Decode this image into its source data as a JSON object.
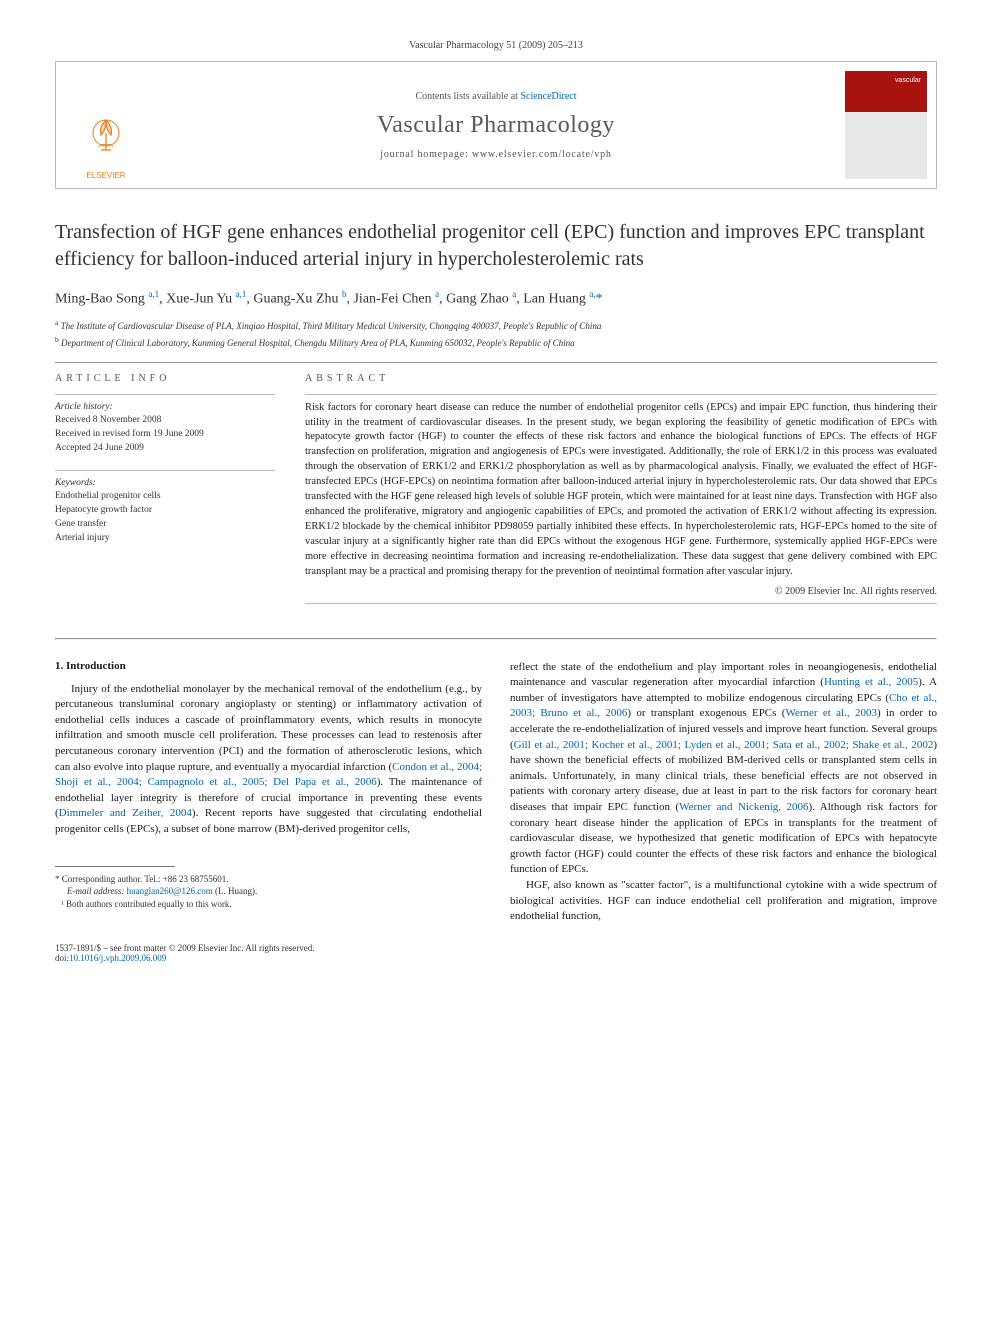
{
  "journal_ref": "Vascular Pharmacology 51 (2009) 205–213",
  "masthead": {
    "contents_prefix": "Contents lists available at ",
    "contents_link": "ScienceDirect",
    "journal_name": "Vascular Pharmacology",
    "homepage_prefix": "journal homepage: ",
    "homepage_url": "www.elsevier.com/locate/vph",
    "publisher": "ELSEVIER",
    "cover_label": "vascular"
  },
  "title": "Transfection of HGF gene enhances endothelial progenitor cell (EPC) function and improves EPC transplant efficiency for balloon-induced arterial injury in hypercholesterolemic rats",
  "authors_html": "Ming-Bao Song <sup>a,1</sup>, Xue-Jun Yu <sup>a,1</sup>, Guang-Xu Zhu <sup>b</sup>, Jian-Fei Chen <sup>a</sup>, Gang Zhao <sup>a</sup>, Lan Huang <sup>a,</sup><span class='star'>*</span>",
  "affiliations": {
    "a": "The Institute of Cardiovascular Disease of PLA, Xinqiao Hospital, Third Military Medical University, Chongqing 400037, People's Republic of China",
    "b": "Department of Clinical Laboratory, Kunming General Hospital, Chengdu Military Area of PLA, Kunming 650032, People's Republic of China"
  },
  "article_info": {
    "head": "ARTICLE INFO",
    "history_label": "Article history:",
    "received": "Received 8 November 2008",
    "revised": "Received in revised form 19 June 2009",
    "accepted": "Accepted 24 June 2009",
    "keywords_label": "Keywords:",
    "keywords": [
      "Endothelial progenitor cells",
      "Hepatocyte growth factor",
      "Gene transfer",
      "Arterial injury"
    ]
  },
  "abstract": {
    "head": "ABSTRACT",
    "text": "Risk factors for coronary heart disease can reduce the number of endothelial progenitor cells (EPCs) and impair EPC function, thus hindering their utility in the treatment of cardiovascular diseases. In the present study, we began exploring the feasibility of genetic modification of EPCs with hepatocyte growth factor (HGF) to counter the effects of these risk factors and enhance the biological functions of EPCs. The effects of HGF transfection on proliferation, migration and angiogenesis of EPCs were investigated. Additionally, the role of ERK1/2 in this process was evaluated through the observation of ERK1/2 and ERK1/2 phosphorylation as well as by pharmacological analysis. Finally, we evaluated the effect of HGF-transfected EPCs (HGF-EPCs) on neointima formation after balloon-induced arterial injury in hypercholesterolemic rats. Our data showed that EPCs transfected with the HGF gene released high levels of soluble HGF protein, which were maintained for at least nine days. Transfection with HGF also enhanced the proliferative, migratory and angiogenic capabilities of EPCs, and promoted the activation of ERK1/2 without affecting its expression. ERK1/2 blockade by the chemical inhibitor PD98059 partially inhibited these effects. In hypercholesterolemic rats, HGF-EPCs homed to the site of vascular injury at a significantly higher rate than did EPCs without the exogenous HGF gene. Furthermore, systemically applied HGF-EPCs were more effective in decreasing neointima formation and increasing re-endothelialization. These data suggest that gene delivery combined with EPC transplant may be a practical and promising therapy for the prevention of neointimal formation after vascular injury.",
    "copyright": "© 2009 Elsevier Inc. All rights reserved."
  },
  "body": {
    "section_num": "1.",
    "section_title": "Introduction",
    "left": "Injury of the endothelial monolayer by the mechanical removal of the endothelium (e.g., by percutaneous transluminal coronary angioplasty or stenting) or inflammatory activation of endothelial cells induces a cascade of proinflammatory events, which results in monocyte infiltration and smooth muscle cell proliferation. These processes can lead to restenosis after percutaneous coronary intervention (PCI) and the formation of atherosclerotic lesions, which can also evolve into plaque rupture, and eventually a myocardial infarction (",
    "left_cite1": "Condon et al., 2004; Shoji et al., 2004; Campagnolo et al., 2005; Del Papa et al., 2006",
    "left2": "). The maintenance of endothelial layer integrity is therefore of crucial importance in preventing these events (",
    "left_cite2": "Dimmeler and Zeiher, 2004",
    "left3": "). Recent reports have suggested that circulating endothelial progenitor cells (EPCs), a subset of bone marrow (BM)-derived progenitor cells,",
    "right1": "reflect the state of the endothelium and play important roles in neoangiogenesis, endothelial maintenance and vascular regeneration after myocardial infarction (",
    "right_cite1": "Hunting et al., 2005",
    "right2": "). A number of investigators have attempted to mobilize endogenous circulating EPCs (",
    "right_cite2": "Cho et al., 2003; Bruno et al., 2006",
    "right3": ") or transplant exogenous EPCs (",
    "right_cite3": "Werner et al., 2003",
    "right4": ") in order to accelerate the re-endothelialization of injured vessels and improve heart function. Several groups (",
    "right_cite4": "Gill et al., 2001; Kocher et al., 2001; Lyden et al., 2001; Sata et al., 2002; Shake et al., 2002",
    "right5": ") have shown the beneficial effects of mobilized BM-derived cells or transplanted stem cells in animals. Unfortunately, in many clinical trials, these beneficial effects are not observed in patients with coronary artery disease, due at least in part to the risk factors for coronary heart diseases that impair EPC function (",
    "right_cite5": "Werner and Nickenig, 2006",
    "right6": "). Although risk factors for coronary heart disease hinder the application of EPCs in transplants for the treatment of cardiovascular disease, we hypothesized that genetic modification of EPCs with hepatocyte growth factor (HGF) could counter the effects of these risk factors and enhance the biological function of EPCs.",
    "right_p2": "HGF, also known as \"scatter factor\", is a multifunctional cytokine with a wide spectrum of biological activities. HGF can induce endothelial cell proliferation and migration, improve endothelial function,"
  },
  "footnotes": {
    "corr_label": "* Corresponding author. Tel.: +86 23 68755601.",
    "email_label": "E-mail address:",
    "email": "huanglan260@126.com",
    "email_name": "(L. Huang).",
    "equal": "¹ Both authors contributed equally to this work."
  },
  "footer": {
    "issn": "1537-1891/$ – see front matter © 2009 Elsevier Inc. All rights reserved.",
    "doi_label": "doi:",
    "doi": "10.1016/j.vph.2009.06.009"
  },
  "colors": {
    "link": "#0066aa",
    "elsevier": "#e87c1e",
    "cover_red": "#a8130f"
  }
}
